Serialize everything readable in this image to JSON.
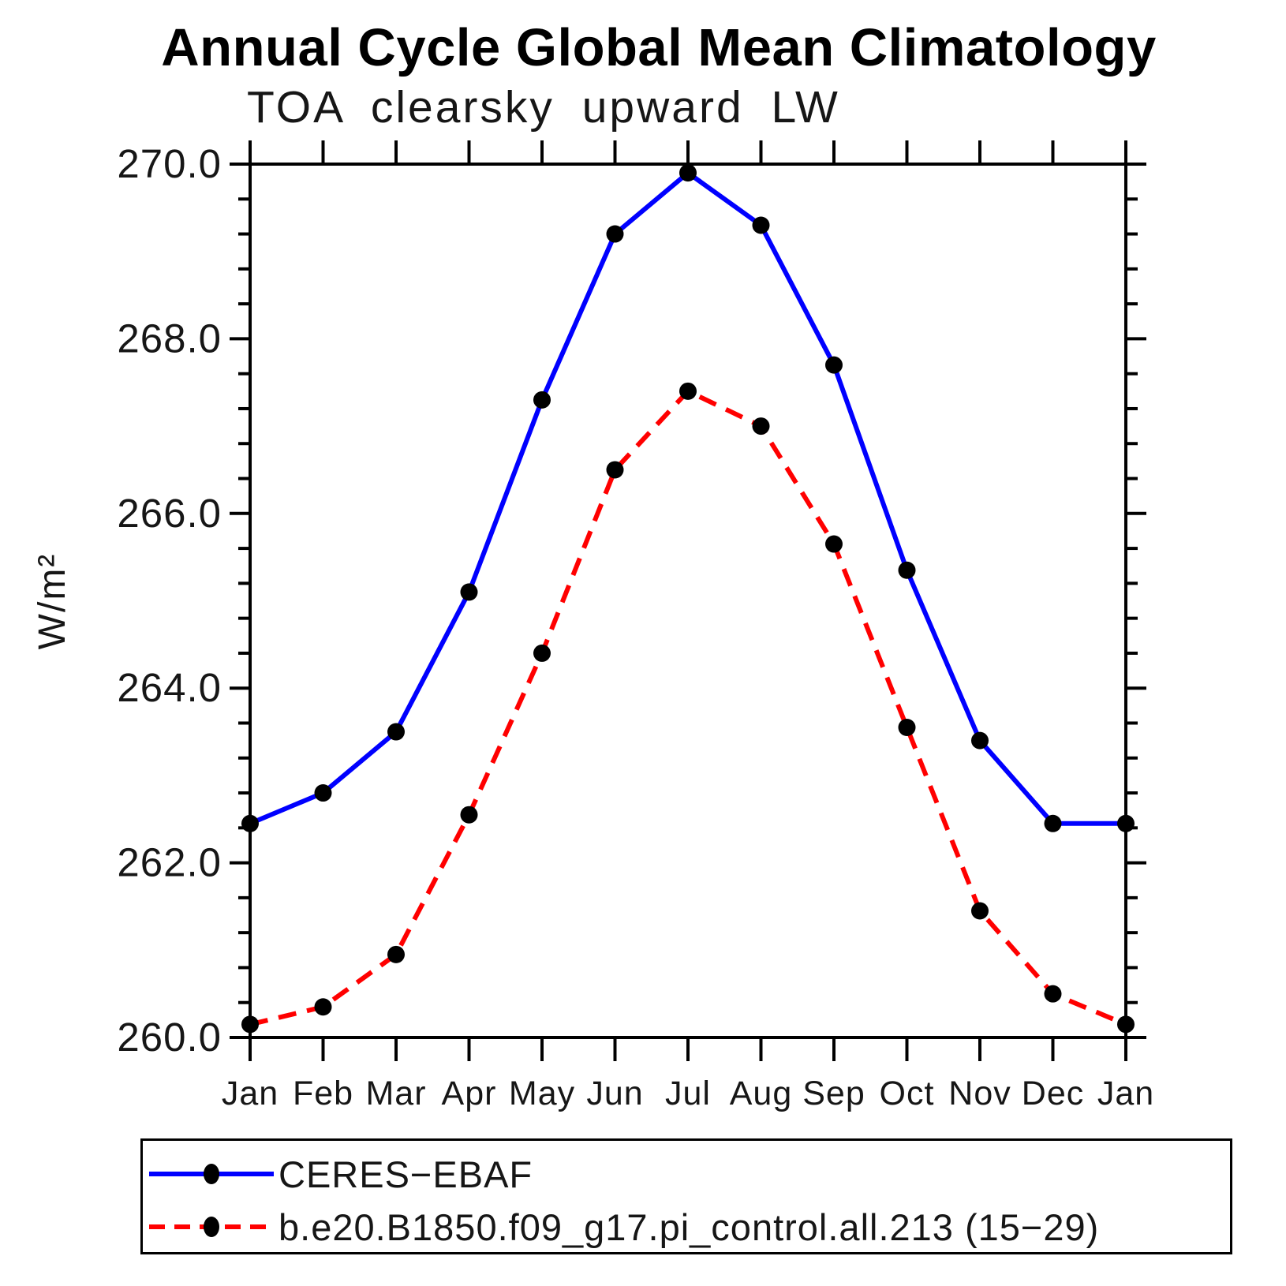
{
  "chart_data": {
    "type": "line",
    "title": "Annual Cycle Global Mean Climatology",
    "subtitle": "TOA clearsky upward LW",
    "ylabel": "W/m²",
    "xlabel": "",
    "categories": [
      "Jan",
      "Feb",
      "Mar",
      "Apr",
      "May",
      "Jun",
      "Jul",
      "Aug",
      "Sep",
      "Oct",
      "Nov",
      "Dec",
      "Jan"
    ],
    "ylim": [
      260.0,
      270.0
    ],
    "y_major_ticks": [
      260.0,
      262.0,
      264.0,
      266.0,
      268.0,
      270.0
    ],
    "y_minor_step": 0.4,
    "grid": "off",
    "legend_position": "bottom-left-box",
    "marker": "filled-black-circle",
    "axis_color": "#000000",
    "series": [
      {
        "name": "CERES−EBAF",
        "color": "#0000ff",
        "style": "solid",
        "values": [
          262.45,
          262.8,
          263.5,
          265.1,
          267.3,
          269.2,
          269.9,
          269.3,
          267.7,
          265.35,
          263.4,
          262.45,
          262.45
        ]
      },
      {
        "name": "b.e20.B1850.f09_g17.pi_control.all.213 (15−29)",
        "color": "#ff0000",
        "style": "dashed",
        "values": [
          260.15,
          260.35,
          260.95,
          262.55,
          264.4,
          266.5,
          267.4,
          267.0,
          265.65,
          263.55,
          261.45,
          260.5,
          260.15
        ]
      }
    ]
  }
}
